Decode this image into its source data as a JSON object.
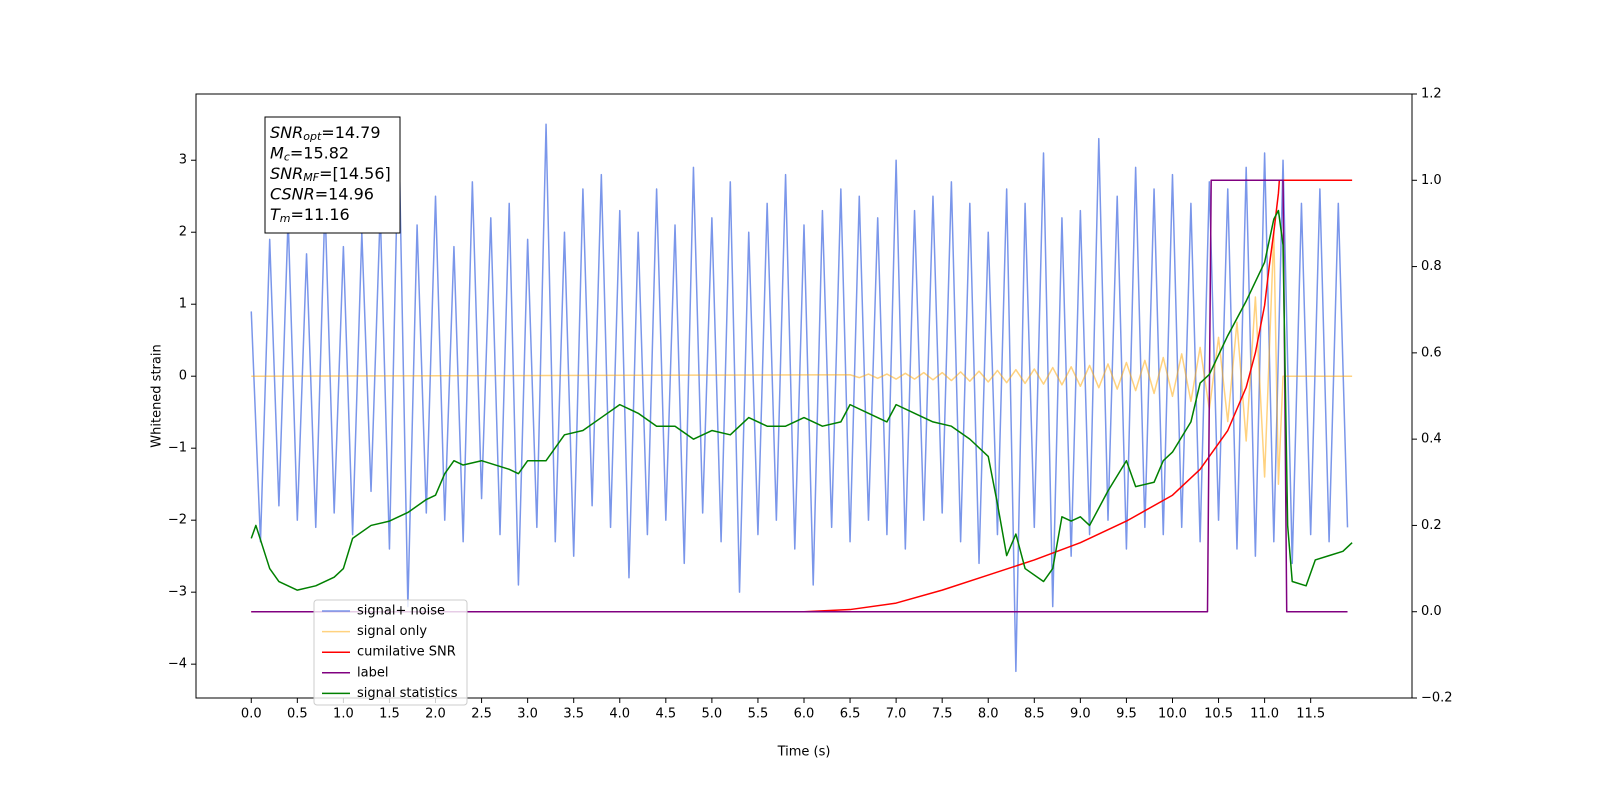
{
  "chart_data": {
    "type": "line",
    "xlabel": "Time (s)",
    "ylabel": "Whitened strain",
    "xlim": [
      -0.6,
      12.6
    ],
    "ylim": [
      -4.47,
      3.92
    ],
    "y2lim": [
      -0.2,
      1.2
    ],
    "xticks": [
      {
        "value": 0,
        "label": "0.0"
      },
      0.5,
      {
        "value": 1,
        "label": "1.0"
      },
      1.5,
      {
        "value": 2,
        "label": "2.0"
      },
      2.5,
      {
        "value": 3,
        "label": "3.0"
      },
      3.5,
      {
        "value": 4,
        "label": "4.0"
      },
      4.5,
      {
        "value": 5,
        "label": "5.0"
      },
      5.5,
      {
        "value": 6,
        "label": "6.0"
      },
      6.5,
      {
        "value": 7,
        "label": "7.0"
      },
      7.5,
      {
        "value": 8,
        "label": "8.0"
      },
      8.5,
      {
        "value": 9,
        "label": "9.0"
      },
      9.5,
      {
        "value": 10,
        "label": "10.0"
      },
      10.5,
      {
        "value": 11,
        "label": "11.0"
      },
      11.5
    ],
    "yticks": [
      {
        "value": -4,
        "label": "−4"
      },
      {
        "value": -3,
        "label": "−3"
      },
      {
        "value": -2,
        "label": "−2"
      },
      {
        "value": -1,
        "label": "−1"
      },
      0,
      1,
      2,
      3
    ],
    "y2ticks": [
      {
        "value": -0.2,
        "label": "−0.2"
      },
      {
        "value": 0,
        "label": "0.0"
      },
      0.2,
      0.4,
      0.6,
      0.8,
      {
        "value": 1,
        "label": "1.0"
      },
      1.2
    ],
    "grid": false,
    "legend": "lower left",
    "annotations": [
      {
        "symbol": "SNR",
        "subscript": "opt",
        "text": "=14.79"
      },
      {
        "symbol": "M",
        "subscript": "c",
        "text": "=15.82"
      },
      {
        "symbol": "SNR",
        "subscript": "MF",
        "text": "=[14.56]"
      },
      {
        "symbol": "CSNR",
        "subscript": "",
        "text": "=14.96"
      },
      {
        "symbol": "T",
        "subscript": "m",
        "text": "=11.16"
      }
    ],
    "series": [
      {
        "name": "signal+ noise",
        "color": "#4169e1",
        "alpha": 0.7,
        "axis": "y",
        "x": [
          0,
          0.1,
          0.2,
          0.3,
          0.4,
          0.5,
          0.6,
          0.7,
          0.8,
          0.9,
          1,
          1.1,
          1.2,
          1.3,
          1.4,
          1.5,
          1.6,
          1.7,
          1.8,
          1.9,
          2,
          2.1,
          2.2,
          2.3,
          2.4,
          2.5,
          2.6,
          2.7,
          2.8,
          2.9,
          3,
          3.1,
          3.2,
          3.3,
          3.4,
          3.5,
          3.6,
          3.7,
          3.8,
          3.9,
          4,
          4.1,
          4.2,
          4.3,
          4.4,
          4.5,
          4.6,
          4.7,
          4.8,
          4.9,
          5,
          5.1,
          5.2,
          5.3,
          5.4,
          5.5,
          5.6,
          5.7,
          5.8,
          5.9,
          6,
          6.1,
          6.2,
          6.3,
          6.4,
          6.5,
          6.6,
          6.7,
          6.8,
          6.9,
          7,
          7.1,
          7.2,
          7.3,
          7.4,
          7.5,
          7.6,
          7.7,
          7.8,
          7.9,
          8,
          8.1,
          8.2,
          8.3,
          8.4,
          8.5,
          8.6,
          8.7,
          8.8,
          8.9,
          9,
          9.1,
          9.2,
          9.3,
          9.4,
          9.5,
          9.6,
          9.7,
          9.8,
          9.9,
          10,
          10.1,
          10.2,
          10.3,
          10.4,
          10.5,
          10.6,
          10.7,
          10.8,
          10.9,
          11,
          11.1,
          11.2,
          11.3,
          11.4,
          11.5,
          11.6,
          11.7,
          11.8,
          11.9
        ],
        "values": [
          0.9,
          -2.3,
          1.9,
          -1.8,
          2.2,
          -2.0,
          1.7,
          -2.1,
          2.4,
          -1.9,
          1.8,
          -2.2,
          2.0,
          -1.6,
          2.3,
          -2.4,
          3.5,
          -3.2,
          2.1,
          -1.9,
          2.5,
          -2.0,
          1.8,
          -2.3,
          2.7,
          -1.7,
          2.2,
          -2.2,
          2.4,
          -2.9,
          1.9,
          -2.1,
          3.5,
          -2.3,
          2.0,
          -2.5,
          2.6,
          -1.8,
          2.8,
          -2.1,
          2.3,
          -2.8,
          2.0,
          -2.2,
          2.6,
          -2.0,
          2.1,
          -2.6,
          2.9,
          -1.9,
          2.2,
          -2.3,
          2.7,
          -3.0,
          2.0,
          -2.2,
          2.4,
          -2.0,
          2.8,
          -2.4,
          2.1,
          -2.9,
          2.3,
          -2.1,
          2.6,
          -2.3,
          2.5,
          -2.0,
          2.2,
          -2.2,
          3.0,
          -2.4,
          2.3,
          -2.0,
          2.5,
          -1.9,
          2.7,
          -2.3,
          2.4,
          -2.6,
          2.0,
          -2.2,
          2.6,
          -4.1,
          2.4,
          -2.1,
          3.1,
          -3.2,
          2.2,
          -2.5,
          2.3,
          -2.2,
          3.3,
          -2.0,
          2.5,
          -2.4,
          2.9,
          -2.1,
          2.6,
          -2.2,
          2.8,
          -2.1,
          2.4,
          -2.3,
          2.7,
          -2.0,
          2.6,
          -2.4,
          2.9,
          -2.5,
          3.1,
          -2.3,
          3.0,
          -2.6,
          2.4,
          -2.2,
          2.6,
          -2.3,
          2.4,
          -2.1
        ]
      },
      {
        "name": "signal only",
        "color": "#ffa500",
        "alpha": 0.5,
        "axis": "y",
        "x": [
          0,
          6.5,
          6.6,
          6.7,
          6.8,
          6.9,
          7,
          7.1,
          7.2,
          7.3,
          7.4,
          7.5,
          7.6,
          7.7,
          7.8,
          7.9,
          8,
          8.1,
          8.2,
          8.3,
          8.4,
          8.5,
          8.6,
          8.7,
          8.8,
          8.9,
          9,
          9.1,
          9.2,
          9.3,
          9.4,
          9.5,
          9.6,
          9.7,
          9.8,
          9.9,
          10,
          10.1,
          10.2,
          10.3,
          10.4,
          10.5,
          10.6,
          10.7,
          10.8,
          10.9,
          11,
          11.1,
          11.15,
          11.2,
          11.95
        ],
        "values": [
          0,
          0.02,
          -0.02,
          0.03,
          -0.03,
          0.03,
          -0.04,
          0.04,
          -0.04,
          0.05,
          -0.05,
          0.05,
          -0.06,
          0.06,
          -0.07,
          0.07,
          -0.08,
          0.08,
          -0.09,
          0.09,
          -0.1,
          0.1,
          -0.11,
          0.12,
          -0.12,
          0.13,
          -0.14,
          0.15,
          -0.16,
          0.17,
          -0.18,
          0.19,
          -0.2,
          0.22,
          -0.24,
          0.26,
          -0.28,
          0.31,
          -0.35,
          0.4,
          -0.46,
          0.54,
          -0.63,
          0.75,
          -0.9,
          1.1,
          -1.4,
          2.0,
          -1.5,
          0,
          0
        ]
      },
      {
        "name": "cumilative SNR",
        "color": "#ff0000",
        "axis": "y2",
        "x": [
          0,
          6,
          6.5,
          7,
          7.5,
          8,
          8.5,
          9,
          9.5,
          10,
          10.3,
          10.6,
          10.8,
          10.9,
          11,
          11.05,
          11.1,
          11.15,
          11.16,
          11.95
        ],
        "values": [
          0,
          0,
          0.005,
          0.02,
          0.05,
          0.085,
          0.12,
          0.16,
          0.21,
          0.27,
          0.33,
          0.42,
          0.52,
          0.6,
          0.71,
          0.8,
          0.88,
          0.97,
          1,
          1
        ]
      },
      {
        "name": "label",
        "color": "#800080",
        "axis": "y2",
        "x": [
          0,
          10.38,
          10.42,
          11.2,
          11.24,
          11.9
        ],
        "values": [
          0,
          0,
          1,
          1,
          0,
          0
        ]
      },
      {
        "name": "signal statistics",
        "color": "#008000",
        "axis": "y2",
        "x": [
          0,
          0.05,
          0.2,
          0.3,
          0.5,
          0.7,
          0.9,
          1,
          1.1,
          1.3,
          1.5,
          1.7,
          1.9,
          2,
          2.1,
          2.2,
          2.3,
          2.5,
          2.8,
          2.9,
          3,
          3.2,
          3.4,
          3.6,
          3.8,
          4,
          4.2,
          4.4,
          4.6,
          4.8,
          5,
          5.2,
          5.4,
          5.6,
          5.8,
          6,
          6.2,
          6.4,
          6.5,
          6.7,
          6.9,
          7,
          7.2,
          7.4,
          7.6,
          7.8,
          8,
          8.1,
          8.2,
          8.3,
          8.4,
          8.6,
          8.7,
          8.8,
          8.9,
          9,
          9.1,
          9.3,
          9.5,
          9.6,
          9.8,
          9.9,
          10,
          10.2,
          10.3,
          10.4,
          10.6,
          10.8,
          11,
          11.1,
          11.15,
          11.2,
          11.25,
          11.3,
          11.45,
          11.55,
          11.7,
          11.85,
          11.95
        ],
        "values": [
          0.17,
          0.2,
          0.1,
          0.07,
          0.05,
          0.06,
          0.08,
          0.1,
          0.17,
          0.2,
          0.21,
          0.23,
          0.26,
          0.27,
          0.32,
          0.35,
          0.34,
          0.35,
          0.33,
          0.32,
          0.35,
          0.35,
          0.41,
          0.42,
          0.45,
          0.48,
          0.46,
          0.43,
          0.43,
          0.4,
          0.42,
          0.41,
          0.45,
          0.43,
          0.43,
          0.45,
          0.43,
          0.44,
          0.48,
          0.46,
          0.44,
          0.48,
          0.46,
          0.44,
          0.43,
          0.4,
          0.36,
          0.25,
          0.13,
          0.18,
          0.1,
          0.07,
          0.1,
          0.22,
          0.21,
          0.22,
          0.2,
          0.28,
          0.35,
          0.29,
          0.3,
          0.35,
          0.37,
          0.44,
          0.53,
          0.55,
          0.64,
          0.72,
          0.81,
          0.91,
          0.93,
          0.85,
          0.2,
          0.07,
          0.06,
          0.12,
          0.13,
          0.14,
          0.16
        ]
      }
    ]
  }
}
